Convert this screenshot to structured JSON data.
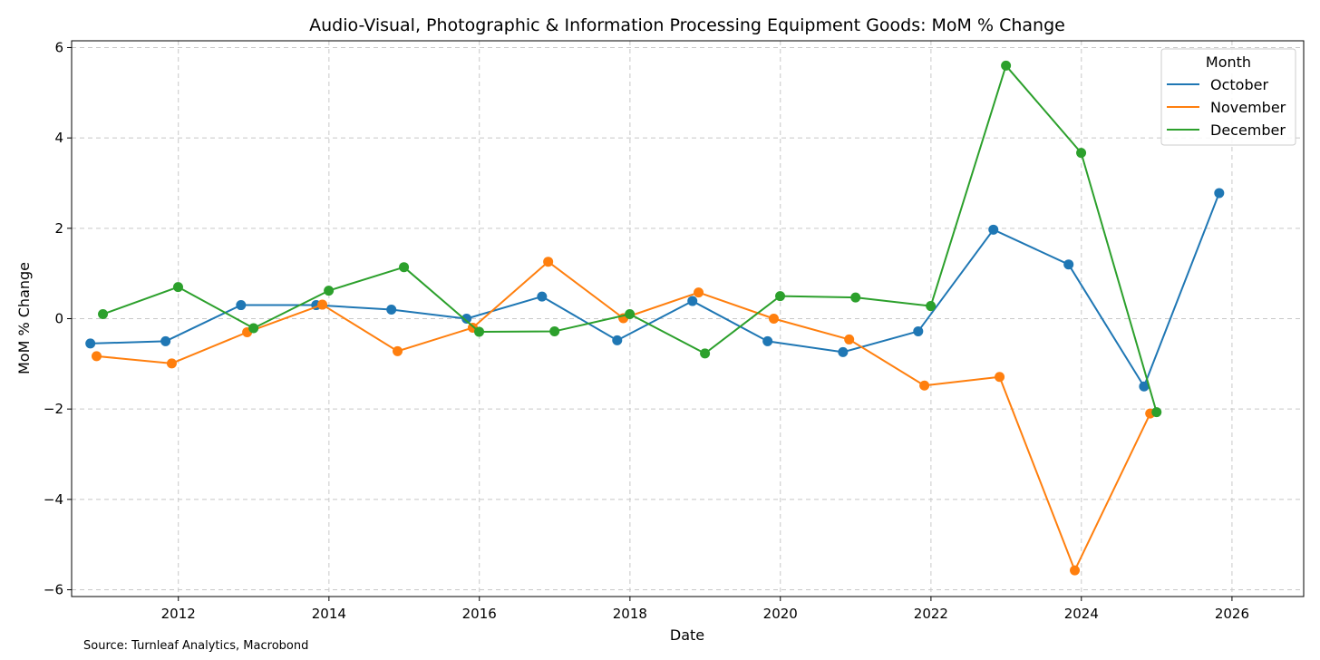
{
  "chart_data": {
    "type": "line",
    "title": "Audio-Visual, Photographic & Information Processing Equipment Goods: MoM % Change",
    "xlabel": "Date",
    "ylabel": "MoM % Change",
    "xlim": [
      "2010-08-01",
      "2026-12-15"
    ],
    "ylim": [
      -6.15,
      6.15
    ],
    "x_ticks": [
      "2012",
      "2014",
      "2016",
      "2018",
      "2020",
      "2022",
      "2024",
      "2026"
    ],
    "y_ticks": [
      -6,
      -4,
      -2,
      0,
      2,
      4,
      6
    ],
    "y_tick_labels": [
      "−6",
      "−4",
      "−2",
      "0",
      "2",
      "4",
      "6"
    ],
    "grid": true,
    "legend": {
      "title": "Month",
      "placement": "top-right"
    },
    "source": "Source: Turnleaf Analytics, Macrobond",
    "series": [
      {
        "name": "October",
        "color": "#1f77b4",
        "points": [
          [
            "2010-10-31",
            -0.55
          ],
          [
            "2011-10-31",
            -0.5
          ],
          [
            "2012-10-31",
            0.3
          ],
          [
            "2013-10-31",
            0.3
          ],
          [
            "2014-10-31",
            0.2
          ],
          [
            "2015-10-31",
            0.0
          ],
          [
            "2016-10-31",
            0.49
          ],
          [
            "2017-10-31",
            -0.48
          ],
          [
            "2018-10-31",
            0.39
          ],
          [
            "2019-10-31",
            -0.5
          ],
          [
            "2020-10-31",
            -0.74
          ],
          [
            "2021-10-31",
            -0.28
          ],
          [
            "2022-10-31",
            1.97
          ],
          [
            "2023-10-31",
            1.2
          ],
          [
            "2024-10-31",
            -1.5
          ],
          [
            "2025-10-31",
            2.78
          ]
        ]
      },
      {
        "name": "November",
        "color": "#ff7f0e",
        "points": [
          [
            "2010-11-30",
            -0.83
          ],
          [
            "2011-11-30",
            -0.99
          ],
          [
            "2012-11-30",
            -0.3
          ],
          [
            "2013-11-30",
            0.31
          ],
          [
            "2014-11-30",
            -0.72
          ],
          [
            "2015-11-30",
            -0.2
          ],
          [
            "2016-11-30",
            1.26
          ],
          [
            "2017-11-30",
            0.01
          ],
          [
            "2018-11-30",
            0.58
          ],
          [
            "2019-11-30",
            0.0
          ],
          [
            "2020-11-30",
            -0.46
          ],
          [
            "2021-11-30",
            -1.48
          ],
          [
            "2022-11-30",
            -1.29
          ],
          [
            "2023-11-30",
            -5.57
          ],
          [
            "2024-11-30",
            -2.1
          ]
        ]
      },
      {
        "name": "December",
        "color": "#2ca02c",
        "points": [
          [
            "2010-12-31",
            0.1
          ],
          [
            "2011-12-31",
            0.7
          ],
          [
            "2012-12-31",
            -0.21
          ],
          [
            "2013-12-31",
            0.62
          ],
          [
            "2014-12-31",
            1.14
          ],
          [
            "2015-12-31",
            -0.29
          ],
          [
            "2016-12-31",
            -0.28
          ],
          [
            "2017-12-31",
            0.1
          ],
          [
            "2018-12-31",
            -0.77
          ],
          [
            "2019-12-31",
            0.5
          ],
          [
            "2020-12-31",
            0.47
          ],
          [
            "2021-12-31",
            0.28
          ],
          [
            "2022-12-31",
            5.6
          ],
          [
            "2023-12-31",
            3.67
          ],
          [
            "2024-12-31",
            -2.07
          ]
        ]
      }
    ]
  }
}
